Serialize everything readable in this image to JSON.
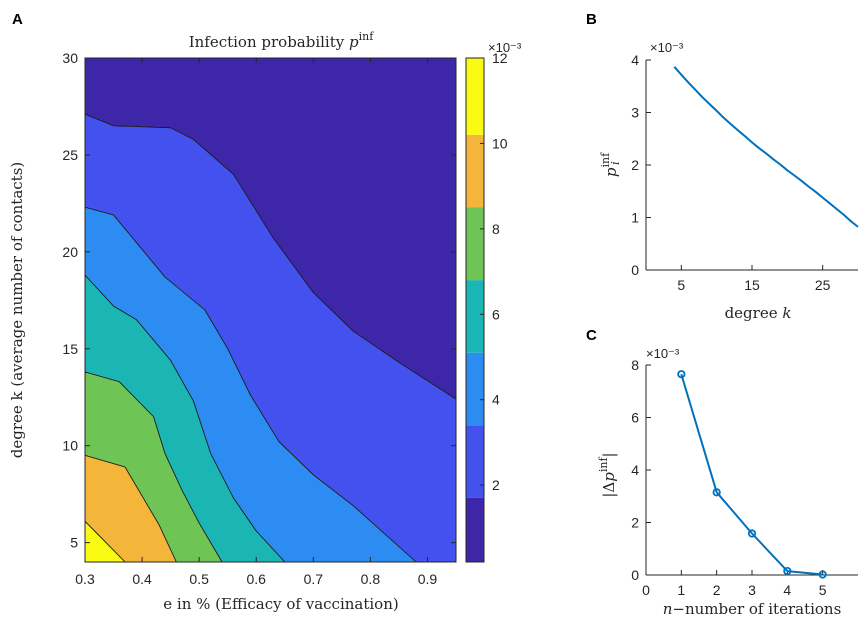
{
  "chart_data": [
    {
      "panel": "A",
      "type": "heatmap",
      "subtype": "filled-contour",
      "title": "Infection probability p^inf",
      "title_text": "Infection probability ",
      "title_sym": "p",
      "title_sup": "inf",
      "xlabel": "e in % (Efficacy of vaccination)",
      "ylabel": "degree k (average number of contacts)",
      "xlim": [
        0.3,
        0.95
      ],
      "ylim": [
        4,
        30
      ],
      "xticks": [
        "0.3",
        "0.4",
        "0.5",
        "0.6",
        "0.7",
        "0.8",
        "0.9"
      ],
      "yticks": [
        "5",
        "10",
        "15",
        "20",
        "25",
        "30"
      ],
      "colorbar": {
        "range": [
          0.2,
          12
        ],
        "ticks": [
          "2",
          "4",
          "6",
          "8",
          "10",
          "12"
        ],
        "multiplier": "×10⁻³",
        "levels": [
          {
            "from": 0.2,
            "to": 1.7,
            "color": "#3e26a8"
          },
          {
            "from": 1.7,
            "to": 3.4,
            "color": "#4352ef"
          },
          {
            "from": 3.4,
            "to": 5.1,
            "color": "#2d8cf1"
          },
          {
            "from": 5.1,
            "to": 6.8,
            "color": "#1bb6b4"
          },
          {
            "from": 6.8,
            "to": 8.5,
            "color": "#6fc456"
          },
          {
            "from": 8.5,
            "to": 10.2,
            "color": "#f4b63a"
          },
          {
            "from": 10.2,
            "to": 12.0,
            "color": "#f9fb14"
          }
        ]
      },
      "contours": [
        {
          "level_index": 0,
          "color": "#3e26a8",
          "points": [
            [
              0.3,
              30
            ],
            [
              0.95,
              30
            ],
            [
              0.95,
              12.4
            ],
            [
              0.85,
              14.3
            ],
            [
              0.77,
              15.9
            ],
            [
              0.7,
              17.9
            ],
            [
              0.63,
              20.7
            ],
            [
              0.56,
              24
            ],
            [
              0.49,
              25.8
            ],
            [
              0.45,
              26.4
            ],
            [
              0.35,
              26.5
            ],
            [
              0.3,
              27.1
            ]
          ]
        },
        {
          "level_index": 1,
          "color": "#4352ef",
          "points": [
            [
              0.3,
              27.1
            ],
            [
              0.35,
              26.5
            ],
            [
              0.45,
              26.4
            ],
            [
              0.49,
              25.8
            ],
            [
              0.56,
              24
            ],
            [
              0.63,
              20.7
            ],
            [
              0.7,
              17.9
            ],
            [
              0.77,
              15.9
            ],
            [
              0.85,
              14.3
            ],
            [
              0.95,
              12.4
            ],
            [
              0.95,
              4
            ],
            [
              0.88,
              4
            ],
            [
              0.77,
              6.9
            ],
            [
              0.7,
              8.5
            ],
            [
              0.64,
              10.2
            ],
            [
              0.59,
              12.6
            ],
            [
              0.55,
              15
            ],
            [
              0.51,
              17
            ],
            [
              0.44,
              18.7
            ],
            [
              0.35,
              21.9
            ],
            [
              0.3,
              22.3
            ]
          ]
        },
        {
          "level_index": 2,
          "color": "#2d8cf1",
          "points": [
            [
              0.3,
              22.3
            ],
            [
              0.35,
              21.9
            ],
            [
              0.44,
              18.7
            ],
            [
              0.51,
              17
            ],
            [
              0.55,
              15
            ],
            [
              0.59,
              12.6
            ],
            [
              0.64,
              10.2
            ],
            [
              0.7,
              8.5
            ],
            [
              0.77,
              6.9
            ],
            [
              0.88,
              4
            ],
            [
              0.81,
              4
            ],
            [
              0.65,
              4
            ],
            [
              0.6,
              5.6
            ],
            [
              0.56,
              7.3
            ],
            [
              0.52,
              9.6
            ],
            [
              0.49,
              12.3
            ],
            [
              0.45,
              14.4
            ],
            [
              0.39,
              16.5
            ],
            [
              0.35,
              17.2
            ],
            [
              0.3,
              18.8
            ]
          ]
        },
        {
          "level_index": 3,
          "color": "#1bb6b4",
          "points": [
            [
              0.3,
              18.8
            ],
            [
              0.35,
              17.2
            ],
            [
              0.39,
              16.5
            ],
            [
              0.45,
              14.4
            ],
            [
              0.49,
              12.3
            ],
            [
              0.52,
              9.6
            ],
            [
              0.56,
              7.3
            ],
            [
              0.6,
              5.6
            ],
            [
              0.65,
              4
            ],
            [
              0.54,
              4
            ],
            [
              0.5,
              6
            ],
            [
              0.47,
              7.7
            ],
            [
              0.44,
              9.6
            ],
            [
              0.42,
              11.5
            ],
            [
              0.36,
              13.3
            ],
            [
              0.3,
              13.8
            ]
          ]
        },
        {
          "level_index": 4,
          "color": "#6fc456",
          "points": [
            [
              0.3,
              13.8
            ],
            [
              0.36,
              13.3
            ],
            [
              0.42,
              11.5
            ],
            [
              0.44,
              9.6
            ],
            [
              0.47,
              7.7
            ],
            [
              0.5,
              6
            ],
            [
              0.54,
              4
            ],
            [
              0.46,
              4
            ],
            [
              0.43,
              5.9
            ],
            [
              0.4,
              7.4
            ],
            [
              0.37,
              8.9
            ],
            [
              0.3,
              9.5
            ]
          ]
        },
        {
          "level_index": 5,
          "color": "#f4b63a",
          "points": [
            [
              0.3,
              9.5
            ],
            [
              0.37,
              8.9
            ],
            [
              0.4,
              7.4
            ],
            [
              0.43,
              5.9
            ],
            [
              0.46,
              4
            ],
            [
              0.37,
              4
            ],
            [
              0.33,
              5.2
            ],
            [
              0.3,
              6.1
            ]
          ]
        },
        {
          "level_index": 6,
          "color": "#f9fb14",
          "points": [
            [
              0.3,
              6.1
            ],
            [
              0.33,
              5.2
            ],
            [
              0.37,
              4
            ],
            [
              0.3,
              4
            ]
          ]
        }
      ]
    },
    {
      "panel": "B",
      "type": "line",
      "xlabel": "degree k",
      "xlabel_text": "degree ",
      "xlabel_sym": "k",
      "ylabel": "p_i^inf",
      "ylabel_sym": "p",
      "ylabel_sub": "i",
      "ylabel_sup": "inf",
      "xlim": [
        0,
        30
      ],
      "ylim": [
        0,
        4
      ],
      "xticks": [
        "5",
        "15",
        "25"
      ],
      "yticks": [
        "0",
        "1",
        "2",
        "3",
        "4"
      ],
      "multiplier": "×10⁻³",
      "color": "#0072bd",
      "series": [
        {
          "x": [
            4,
            5,
            6,
            7,
            8,
            9,
            10,
            11,
            12,
            13,
            14,
            15,
            16,
            17,
            18,
            19,
            20,
            21,
            22,
            23,
            24,
            25,
            26,
            27,
            28,
            29,
            30
          ],
          "values": [
            3.87,
            3.72,
            3.57,
            3.43,
            3.29,
            3.16,
            3.03,
            2.9,
            2.78,
            2.66,
            2.55,
            2.43,
            2.32,
            2.22,
            2.11,
            2.01,
            1.9,
            1.8,
            1.7,
            1.59,
            1.49,
            1.38,
            1.27,
            1.16,
            1.05,
            0.93,
            0.82
          ]
        }
      ]
    },
    {
      "panel": "C",
      "type": "line",
      "markers": "circle",
      "xlabel": "n−number of iterations",
      "xlabel_sym": "n",
      "xlabel_text": "−number of iterations",
      "ylabel": "|Δp_i^inf|",
      "ylabel_pre": "|Δ",
      "ylabel_sym": "p",
      "ylabel_sub": "i",
      "ylabel_sup": "inf",
      "ylabel_post": "|",
      "xlim": [
        0,
        6
      ],
      "ylim": [
        0,
        8
      ],
      "xticks": [
        "0",
        "1",
        "2",
        "3",
        "4",
        "5"
      ],
      "yticks": [
        "0",
        "2",
        "4",
        "6",
        "8"
      ],
      "multiplier": "×10⁻³",
      "color": "#0072bd",
      "series": [
        {
          "x": [
            1,
            2,
            3,
            4,
            5
          ],
          "values": [
            7.65,
            3.15,
            1.58,
            0.15,
            0.02
          ]
        }
      ]
    }
  ],
  "panel_labels": [
    "A",
    "B",
    "C"
  ]
}
